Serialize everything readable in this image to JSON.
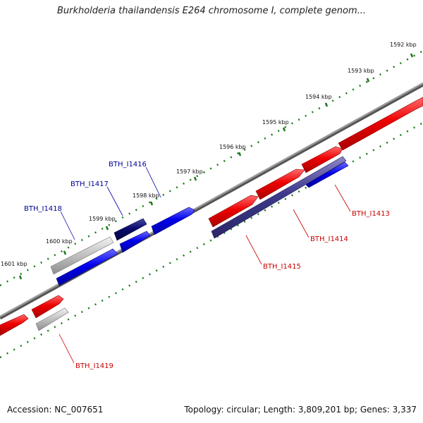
{
  "title": "Burkholderia thailandensis E264 chromosome I, complete genom...",
  "footer": {
    "accession": "Accession: NC_007651",
    "summary": "Topology: circular; Length: 3,809,201 bp; Genes: 3,337"
  },
  "colors": {
    "forward_gene": "#ee0000",
    "reverse_gene": "#0000ee",
    "highlight_gene": "#3f3a8c",
    "dark_gene": "#0b0b6e",
    "pseudo_gene": "#b8b8b8",
    "backbone": "#7a7a7a",
    "ticks": "#1a7a1a",
    "label_forward": "#cc0000",
    "label_reverse": "#000099"
  },
  "ruler": {
    "labels": [
      "1592 kbp",
      "1593 kbp",
      "1594 kbp",
      "1595 kbp",
      "1596 kbp",
      "1597 kbp",
      "1598 kbp",
      "1599 kbp",
      "1600 kbp",
      "1601 kbp"
    ]
  },
  "labels": {
    "reverse": [
      "BTH_I1416",
      "BTH_I1417",
      "BTH_I1418"
    ],
    "forward": [
      "BTH_I1413",
      "BTH_I1414",
      "BTH_I1415",
      "BTH_I1419"
    ]
  }
}
